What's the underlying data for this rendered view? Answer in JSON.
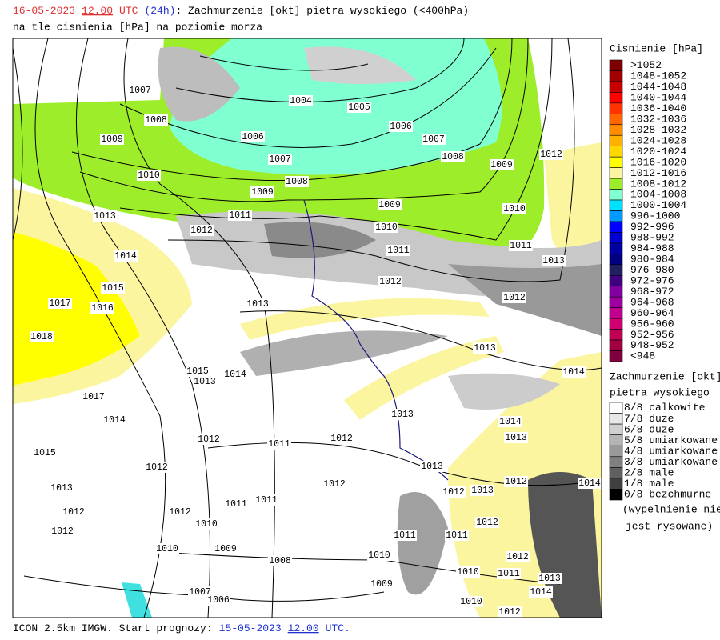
{
  "header": {
    "date": "16-05-2023",
    "hour": "12.00",
    "utc": "UTC",
    "lead": "(24h)",
    "title": ": Zachmurzenie [okt] pietra wysokiego (<400hPa)",
    "subtitle": "na tle cisnienia [hPa] na poziomie morza"
  },
  "footer": {
    "model": "ICON 2.5km IMGW. Start prognozy:",
    "date": "15-05-2023",
    "hour": "12.00",
    "utc": "UTC."
  },
  "legend_pressure": {
    "title": "Cisnienie [hPa]",
    "items": [
      {
        "label": ">1052",
        "color": "#7f0000"
      },
      {
        "label": "1048-1052",
        "color": "#a00000"
      },
      {
        "label": "1044-1048",
        "color": "#c80000"
      },
      {
        "label": "1040-1044",
        "color": "#ff0000"
      },
      {
        "label": "1036-1040",
        "color": "#ff3300"
      },
      {
        "label": "1032-1036",
        "color": "#ff6600"
      },
      {
        "label": "1028-1032",
        "color": "#ff8c00"
      },
      {
        "label": "1024-1028",
        "color": "#ffb000"
      },
      {
        "label": "1020-1024",
        "color": "#ffd700"
      },
      {
        "label": "1016-1020",
        "color": "#ffff00"
      },
      {
        "label": "1012-1016",
        "color": "#fbf5a0"
      },
      {
        "label": "1008-1012",
        "color": "#9eed2b"
      },
      {
        "label": "1004-1008",
        "color": "#80ffd0"
      },
      {
        "label": "1000-1004",
        "color": "#00e0ff"
      },
      {
        "label": "996-1000",
        "color": "#0099ff"
      },
      {
        "label": "992-996",
        "color": "#0000ff"
      },
      {
        "label": "988-992",
        "color": "#0000d0"
      },
      {
        "label": "984-988",
        "color": "#0000a0"
      },
      {
        "label": "980-984",
        "color": "#000080"
      },
      {
        "label": "976-980",
        "color": "#202060"
      },
      {
        "label": "972-976",
        "color": "#400080"
      },
      {
        "label": "968-972",
        "color": "#8000a0"
      },
      {
        "label": "964-968",
        "color": "#a000a0"
      },
      {
        "label": "960-964",
        "color": "#c00090"
      },
      {
        "label": "956-960",
        "color": "#d00070"
      },
      {
        "label": "952-956",
        "color": "#c00050"
      },
      {
        "label": "948-952",
        "color": "#a00040"
      },
      {
        "label": "<948",
        "color": "#800040"
      }
    ]
  },
  "legend_clouds": {
    "title": [
      "Zachmurzenie [okt]",
      "pietra wysokiego"
    ],
    "items": [
      {
        "label": "8/8 calkowite",
        "color": "#ffffff"
      },
      {
        "label": "7/8 duze",
        "color": "#e6e6e6"
      },
      {
        "label": "6/8 duze",
        "color": "#d0d0d0"
      },
      {
        "label": "5/8 umiarkowane",
        "color": "#b4b4b4"
      },
      {
        "label": "4/8 umiarkowane",
        "color": "#999999"
      },
      {
        "label": "3/8 umiarkowane",
        "color": "#808080"
      },
      {
        "label": "2/8 male",
        "color": "#606060"
      },
      {
        "label": "1/8 male",
        "color": "#404040"
      },
      {
        "label": "0/8 bezchmurne",
        "color": "#000000"
      }
    ],
    "note": [
      "(wypelnienie nie",
      "jest rysowane)"
    ]
  },
  "map": {
    "isobar_labels": [
      "1007",
      "1004",
      "1005",
      "1008",
      "1006",
      "1006",
      "1007",
      "1009",
      "1007",
      "1008",
      "1012",
      "1009",
      "1010",
      "1008",
      "1009",
      "1009",
      "1010",
      "1013",
      "1011",
      "1010",
      "1012",
      "1011",
      "1014",
      "1011",
      "1013",
      "1012",
      "1015",
      "1012",
      "1017",
      "1016",
      "1013",
      "1018",
      "1013",
      "1015",
      "1014",
      "1013",
      "1014",
      "1017",
      "1013",
      "1014",
      "1014",
      "1012",
      "1011",
      "1012",
      "1013",
      "1015",
      "1012",
      "1013",
      "1012",
      "1012",
      "1013",
      "1012",
      "1014",
      "1013",
      "1011",
      "1011",
      "1012",
      "1012",
      "1012",
      "1010",
      "1012",
      "1011",
      "1011",
      "1010",
      "1009",
      "1010",
      "1008",
      "1012",
      "1010",
      "1011",
      "1013",
      "1009",
      "1007",
      "1006",
      "1014",
      "1010",
      "1012"
    ]
  }
}
